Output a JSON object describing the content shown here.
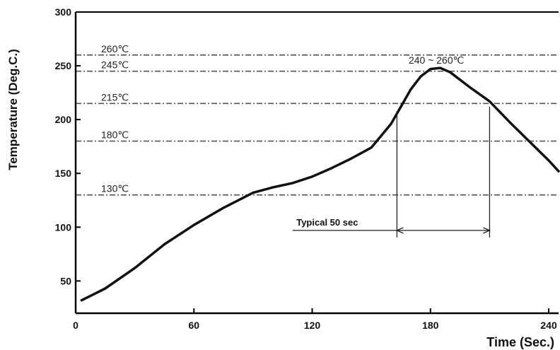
{
  "chart_data": {
    "type": "line",
    "xlabel": "Time (Sec.)",
    "ylabel": "Temperature (Deg.C.)",
    "xlim": [
      0,
      245
    ],
    "ylim": [
      20,
      300
    ],
    "x_ticks": [
      0,
      60,
      120,
      180,
      240
    ],
    "y_ticks": [
      50,
      100,
      150,
      200,
      250,
      300
    ],
    "grid": false,
    "reference_lines": [
      {
        "value": 260,
        "label": "260℃"
      },
      {
        "value": 245,
        "label": "245℃"
      },
      {
        "value": 215,
        "label": "215℃"
      },
      {
        "value": 180,
        "label": "180℃"
      },
      {
        "value": 130,
        "label": "130℃"
      }
    ],
    "series": [
      {
        "x": [
          3,
          15,
          30,
          45,
          60,
          75,
          90,
          100,
          110,
          120,
          130,
          140,
          150,
          160,
          165,
          170,
          175,
          180,
          185,
          190,
          200,
          210,
          220,
          230,
          240,
          245
        ],
        "y": [
          32,
          43,
          62,
          84,
          102,
          118,
          132,
          137,
          141,
          147,
          155,
          164,
          174,
          196,
          212,
          228,
          240,
          247,
          248,
          244,
          230,
          217,
          198,
          180,
          162,
          152
        ]
      }
    ],
    "annotations": [
      {
        "text": "240 ~ 260℃",
        "x": 183,
        "y": 252
      },
      {
        "text": "Typical 50 sec",
        "x_start": 163,
        "x_end": 210,
        "y": 97
      }
    ]
  },
  "colors": {
    "line": "#111111",
    "ref_line": "#555555",
    "axis": "#000000"
  }
}
